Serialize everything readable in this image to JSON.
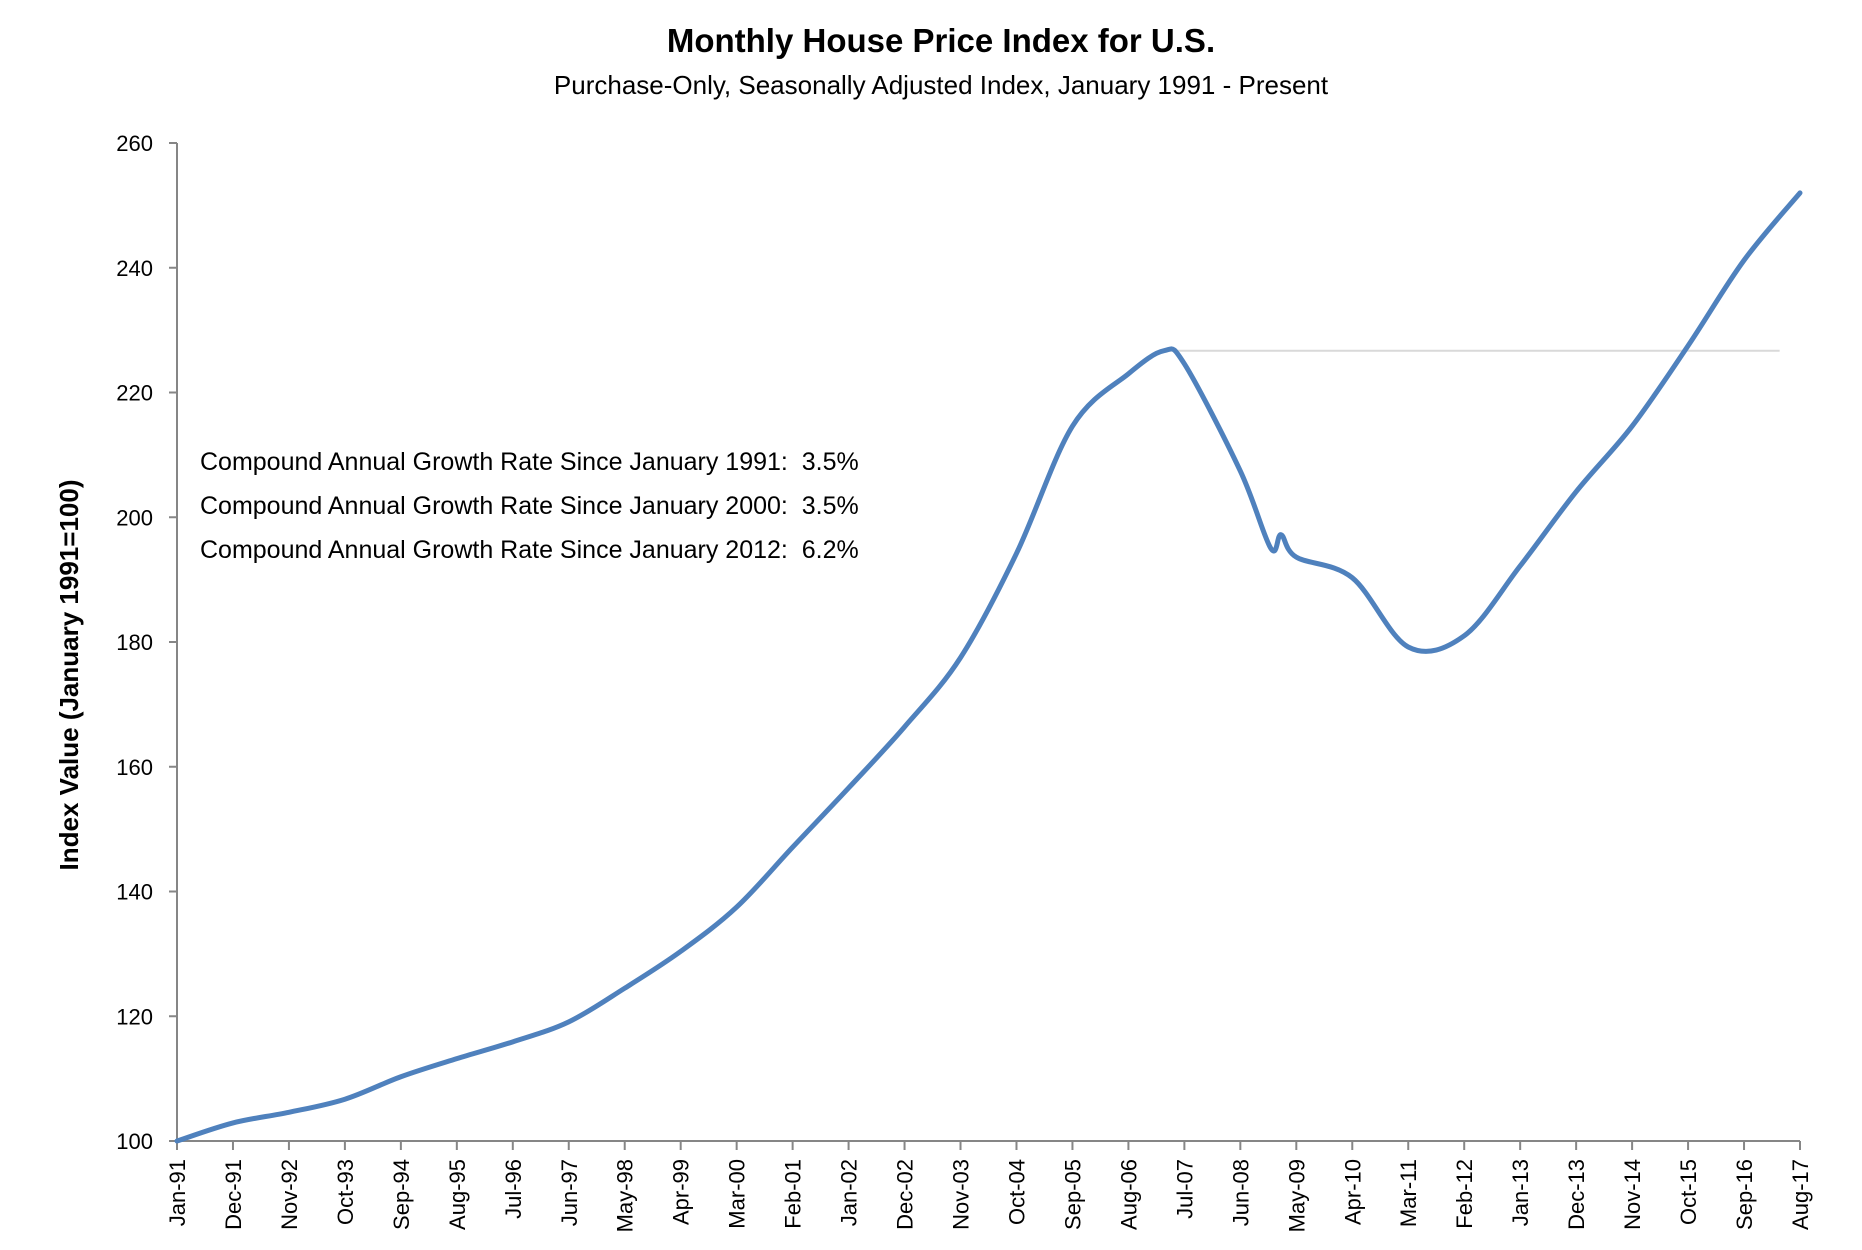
{
  "chart_data": {
    "type": "line",
    "title": "Monthly House Price Index for U.S.",
    "subtitle": "Purchase-Only, Seasonally Adjusted Index, January 1991 - Present",
    "ylabel": "Index Value (January 1991=100)",
    "xlabel": "",
    "ylim": [
      100,
      260
    ],
    "yticks": [
      100,
      120,
      140,
      160,
      180,
      200,
      220,
      240,
      260
    ],
    "xlim": [
      "1991-01",
      "2017-08"
    ],
    "xtick_labels": [
      "Jan-91",
      "Dec-91",
      "Nov-92",
      "Oct-93",
      "Sep-94",
      "Aug-95",
      "Jul-96",
      "Jun-97",
      "May-98",
      "Apr-99",
      "Mar-00",
      "Feb-01",
      "Jan-02",
      "Dec-02",
      "Nov-03",
      "Oct-04",
      "Sep-05",
      "Aug-06",
      "Jul-07",
      "Jun-08",
      "May-09",
      "Apr-10",
      "Mar-11",
      "Feb-12",
      "Jan-13",
      "Dec-13",
      "Nov-14",
      "Oct-15",
      "Sep-16",
      "Aug-17"
    ],
    "grid": false,
    "line_color": "#4f81bd",
    "reference_line": {
      "value": 226.7,
      "from": "2007-03",
      "to": "2017-04",
      "color": "#d9d9d9"
    },
    "series": [
      {
        "x": [
          "1991-01",
          "1991-12",
          "1992-11",
          "1993-10",
          "1994-09",
          "1995-08",
          "1996-07",
          "1997-06",
          "1998-05",
          "1999-04",
          "2000-03",
          "2001-02",
          "2002-01",
          "2002-12",
          "2003-11",
          "2004-10",
          "2005-09",
          "2006-08",
          "2007-03",
          "2007-07",
          "2008-06",
          "2008-12",
          "2009-02",
          "2009-05",
          "2010-04",
          "2011-03",
          "2012-02",
          "2013-01",
          "2013-12",
          "2014-11",
          "2015-10",
          "2016-09",
          "2017-08"
        ],
        "values": [
          100,
          102.9,
          104.6,
          106.7,
          110.3,
          113.2,
          115.9,
          119.1,
          124.5,
          130.4,
          137.5,
          147.1,
          156.6,
          166.4,
          177.5,
          194.2,
          214.6,
          223,
          226.7,
          224.6,
          207.4,
          195,
          197.2,
          193.6,
          190.3,
          179.2,
          181,
          192.2,
          204.1,
          214.6,
          227.5,
          241.2,
          252
        ]
      }
    ],
    "annotations": [
      "Compound Annual Growth Rate Since January 1991:  3.5%",
      "Compound Annual Growth Rate Since January 2000:  3.5%",
      "Compound Annual Growth Rate Since January 2012:  6.2%"
    ]
  }
}
